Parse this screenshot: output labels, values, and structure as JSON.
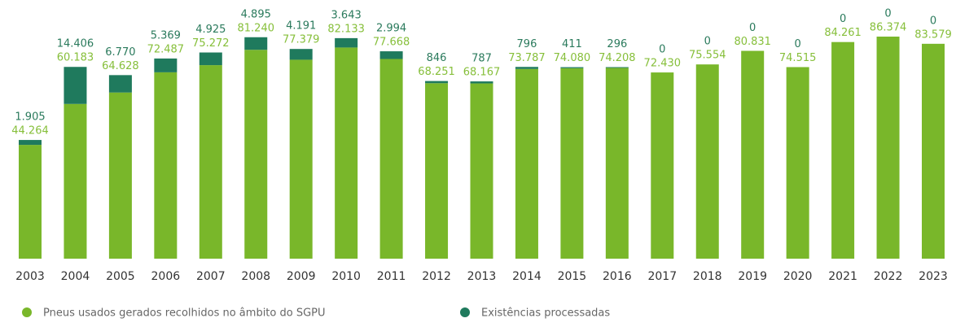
{
  "chart_data": {
    "type": "stacked_bar",
    "categories": [
      "2003",
      "2004",
      "2005",
      "2006",
      "2007",
      "2008",
      "2009",
      "2010",
      "2011",
      "2012",
      "2013",
      "2014",
      "2015",
      "2016",
      "2017",
      "2018",
      "2019",
      "2020",
      "2021",
      "2022",
      "2023"
    ],
    "series": [
      {
        "name": "Pneus usados gerados recolhidos no âmbito do SGPU",
        "color": "#79b72a",
        "values": [
          44264,
          60183,
          64628,
          72487,
          75272,
          81240,
          77379,
          82133,
          77668,
          68251,
          68167,
          73787,
          74080,
          74208,
          72430,
          75554,
          80831,
          74515,
          84261,
          86374,
          83579
        ],
        "value_labels": [
          "44.264",
          "60.183",
          "64.628",
          "72.487",
          "75.272",
          "81.240",
          "77.379",
          "82.133",
          "77.668",
          "68.251",
          "68.167",
          "73.787",
          "74.080",
          "74.208",
          "72.430",
          "75.554",
          "80.831",
          "74.515",
          "84.261",
          "86.374",
          "83.579"
        ]
      },
      {
        "name": "Existências processadas",
        "color": "#1f7a5d",
        "values": [
          1905,
          14406,
          6770,
          5369,
          4925,
          4895,
          4191,
          3643,
          2994,
          846,
          787,
          796,
          411,
          296,
          0,
          0,
          0,
          0,
          0,
          0,
          0
        ],
        "value_labels": [
          "1.905",
          "14.406",
          "6.770",
          "5.369",
          "4.925",
          "4.895",
          "4.191",
          "3.643",
          "2.994",
          "846",
          "787",
          "796",
          "411",
          "296",
          "0",
          "0",
          "0",
          "0",
          "0",
          "0",
          "0"
        ]
      }
    ]
  }
}
